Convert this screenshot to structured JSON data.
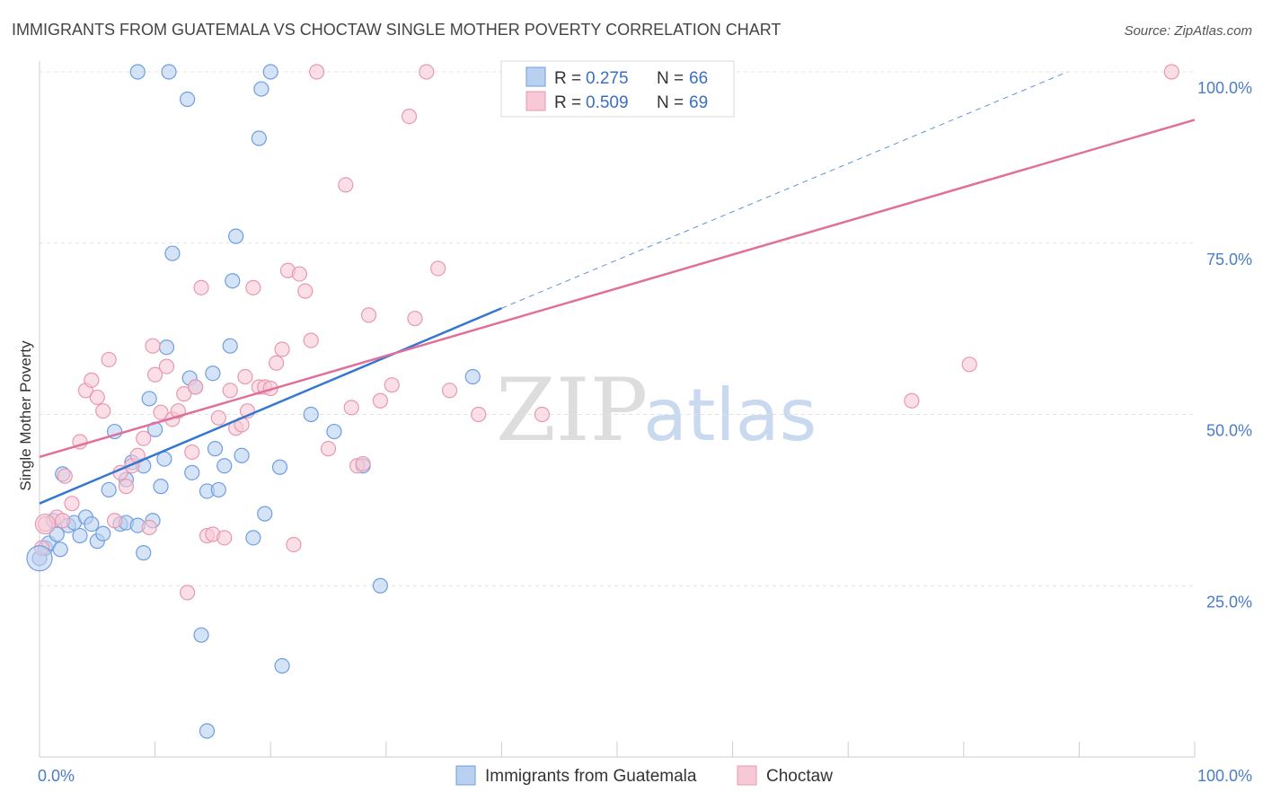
{
  "chart_data": {
    "type": "scatter",
    "title": "IMMIGRANTS FROM GUATEMALA VS CHOCTAW SINGLE MOTHER POVERTY CORRELATION CHART",
    "source": "Source: ZipAtlas.com",
    "ylabel": "Single Mother Poverty",
    "xlim": [
      0,
      100
    ],
    "ylim": [
      0,
      100
    ],
    "x_tick_labels": [
      "0.0%",
      "100.0%"
    ],
    "y_ticks": [
      25,
      50,
      75,
      100
    ],
    "y_tick_labels": [
      "25.0%",
      "50.0%",
      "75.0%",
      "100.0%"
    ],
    "grid": true,
    "legend_placement": "top-center",
    "watermark": {
      "zip": "ZIP",
      "atlas": "atlas"
    },
    "series": [
      {
        "name": "Immigrants from Guatemala",
        "color": "#6f9ee0",
        "fill": "#b9d0f0",
        "line_color": "#3577d0",
        "stats": {
          "r_label": "R =",
          "r": "0.275",
          "n_label": "N =",
          "n": "66"
        },
        "trend": {
          "x0": 0,
          "y0": 37.0,
          "x1": 40,
          "y1": 65.5,
          "dash_x1": 89,
          "dash_y1": 100
        },
        "points": [
          [
            0.0,
            29.0
          ],
          [
            0.5,
            30.5
          ],
          [
            0.8,
            31.2
          ],
          [
            1.2,
            34.5
          ],
          [
            1.5,
            32.5
          ],
          [
            1.8,
            30.3
          ],
          [
            2.0,
            41.3
          ],
          [
            2.5,
            33.8
          ],
          [
            3.0,
            34.2
          ],
          [
            3.5,
            32.3
          ],
          [
            4.0,
            35.0
          ],
          [
            4.5,
            34.0
          ],
          [
            5.0,
            31.5
          ],
          [
            5.5,
            32.6
          ],
          [
            6.0,
            39.0
          ],
          [
            6.5,
            47.5
          ],
          [
            7.0,
            34.0
          ],
          [
            7.5,
            34.2
          ],
          [
            7.5,
            40.5
          ],
          [
            8.0,
            43.0
          ],
          [
            8.5,
            33.8
          ],
          [
            8.5,
            100.0
          ],
          [
            9.0,
            42.5
          ],
          [
            9.0,
            29.8
          ],
          [
            9.5,
            52.3
          ],
          [
            9.8,
            34.5
          ],
          [
            10.0,
            47.8
          ],
          [
            10.5,
            39.5
          ],
          [
            10.8,
            43.5
          ],
          [
            11.0,
            59.8
          ],
          [
            11.2,
            100.0
          ],
          [
            11.5,
            73.5
          ],
          [
            12.8,
            96.0
          ],
          [
            13.0,
            55.3
          ],
          [
            13.2,
            41.5
          ],
          [
            13.5,
            54.0
          ],
          [
            14.0,
            17.8
          ],
          [
            14.5,
            38.8
          ],
          [
            14.5,
            3.8
          ],
          [
            15.0,
            56.0
          ],
          [
            15.2,
            45.0
          ],
          [
            15.5,
            39.0
          ],
          [
            16.0,
            42.5
          ],
          [
            16.5,
            60.0
          ],
          [
            16.7,
            69.5
          ],
          [
            17.0,
            76.0
          ],
          [
            17.5,
            44.0
          ],
          [
            18.5,
            32.0
          ],
          [
            19.0,
            90.3
          ],
          [
            19.2,
            97.5
          ],
          [
            19.5,
            35.5
          ],
          [
            20.0,
            100.0
          ],
          [
            20.8,
            42.3
          ],
          [
            21.0,
            13.3
          ],
          [
            23.5,
            50.0
          ],
          [
            25.5,
            47.5
          ],
          [
            28.0,
            42.5
          ],
          [
            29.5,
            25.0
          ],
          [
            37.5,
            55.5
          ]
        ]
      },
      {
        "name": "Choctaw",
        "color": "#e898b0",
        "fill": "#f7c9d7",
        "line_color": "#e0709a",
        "stats": {
          "r_label": "R =",
          "r": "0.509",
          "n_label": "N =",
          "n": "69"
        },
        "trend": {
          "x0": 0,
          "y0": 43.8,
          "x1": 100,
          "y1": 93.0
        },
        "points": [
          [
            0.2,
            30.5
          ],
          [
            0.5,
            34.0
          ],
          [
            1.5,
            35.0
          ],
          [
            2.0,
            34.5
          ],
          [
            2.2,
            41.0
          ],
          [
            2.8,
            37.0
          ],
          [
            3.5,
            46.0
          ],
          [
            4.0,
            53.5
          ],
          [
            4.5,
            55.0
          ],
          [
            5.0,
            52.5
          ],
          [
            5.5,
            50.5
          ],
          [
            6.0,
            58.0
          ],
          [
            6.5,
            34.5
          ],
          [
            7.0,
            41.5
          ],
          [
            7.5,
            39.5
          ],
          [
            8.0,
            42.5
          ],
          [
            8.5,
            44.0
          ],
          [
            9.0,
            46.5
          ],
          [
            9.5,
            33.5
          ],
          [
            9.8,
            60.0
          ],
          [
            10.0,
            55.8
          ],
          [
            10.5,
            50.3
          ],
          [
            11.0,
            57.0
          ],
          [
            11.5,
            49.3
          ],
          [
            12.0,
            50.5
          ],
          [
            12.5,
            53.0
          ],
          [
            12.8,
            24.0
          ],
          [
            13.2,
            44.5
          ],
          [
            13.5,
            54.0
          ],
          [
            14.0,
            68.5
          ],
          [
            14.5,
            32.3
          ],
          [
            15.0,
            32.5
          ],
          [
            15.5,
            49.5
          ],
          [
            16.0,
            32.0
          ],
          [
            16.5,
            53.5
          ],
          [
            17.0,
            48.0
          ],
          [
            17.5,
            48.5
          ],
          [
            17.8,
            55.5
          ],
          [
            18.0,
            50.5
          ],
          [
            18.5,
            68.5
          ],
          [
            19.0,
            54.0
          ],
          [
            19.5,
            54.0
          ],
          [
            20.0,
            53.8
          ],
          [
            20.5,
            57.5
          ],
          [
            21.0,
            59.5
          ],
          [
            21.5,
            71.0
          ],
          [
            22.0,
            31.0
          ],
          [
            22.5,
            70.5
          ],
          [
            23.0,
            68.0
          ],
          [
            23.5,
            60.8
          ],
          [
            24.0,
            100.0
          ],
          [
            25.0,
            45.0
          ],
          [
            26.5,
            83.5
          ],
          [
            27.0,
            51.0
          ],
          [
            27.5,
            42.5
          ],
          [
            28.0,
            42.8
          ],
          [
            28.5,
            64.5
          ],
          [
            29.5,
            52.0
          ],
          [
            30.5,
            54.3
          ],
          [
            32.0,
            93.5
          ],
          [
            32.5,
            64.0
          ],
          [
            33.5,
            100.0
          ],
          [
            34.5,
            71.3
          ],
          [
            35.5,
            53.5
          ],
          [
            38.0,
            50.0
          ],
          [
            43.5,
            50.0
          ],
          [
            45.0,
            100.0
          ],
          [
            75.5,
            52.0
          ],
          [
            80.5,
            57.3
          ],
          [
            98.0,
            100.0
          ]
        ]
      }
    ]
  }
}
